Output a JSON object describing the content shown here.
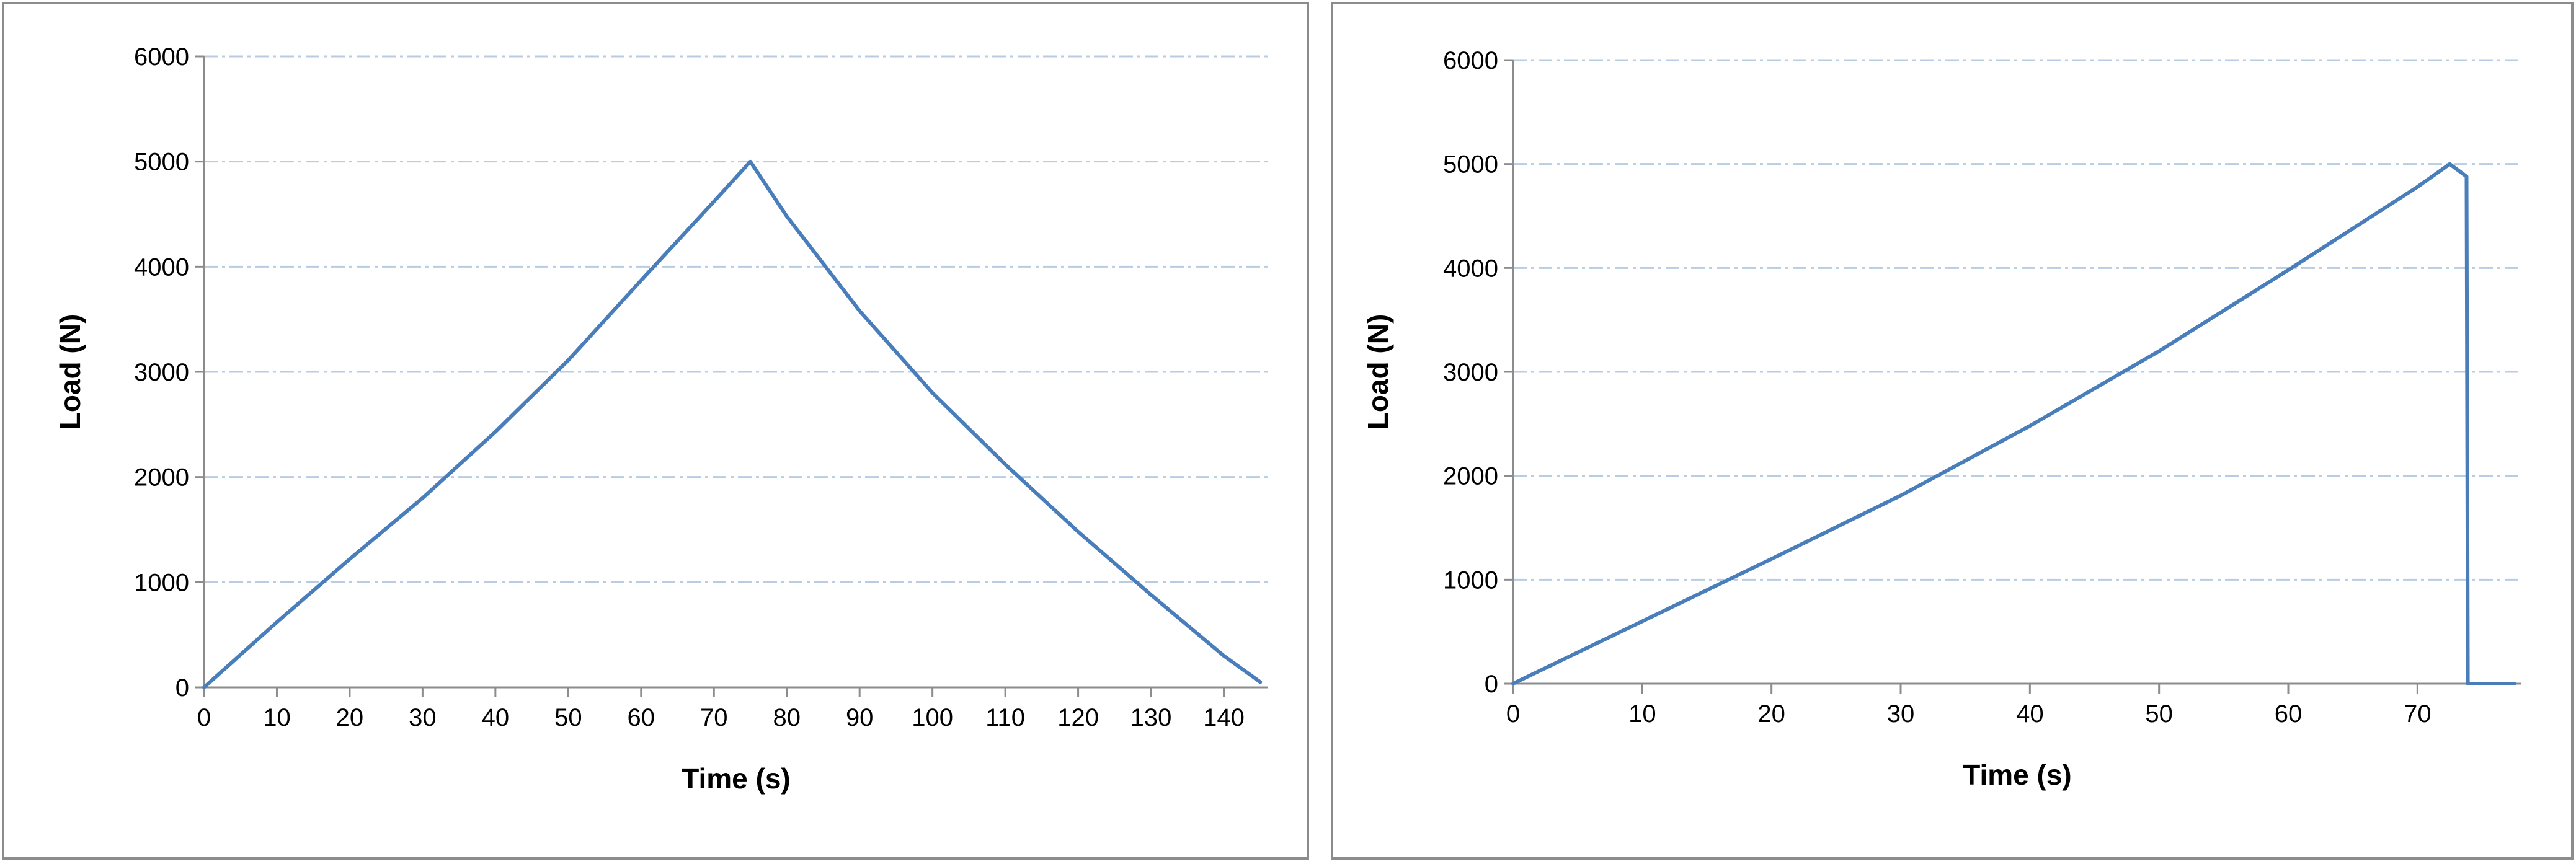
{
  "chart_data": [
    {
      "type": "line",
      "xlabel": "Time (s)",
      "ylabel": "Load (N)",
      "xlim": [
        0,
        146
      ],
      "ylim": [
        0,
        6000
      ],
      "xticks": [
        0,
        10,
        20,
        30,
        40,
        50,
        60,
        70,
        80,
        90,
        100,
        110,
        120,
        130,
        140
      ],
      "yticks": [
        0,
        1000,
        2000,
        3000,
        4000,
        5000,
        6000
      ],
      "grid": "horizontal dash-dot",
      "legend": "none",
      "color": "#4a7ebb",
      "grid_color": "#b8cce4",
      "series": [
        {
          "x": [
            0,
            10,
            20,
            30,
            40,
            50,
            60,
            70,
            75,
            80,
            90,
            100,
            110,
            120,
            130,
            140,
            145
          ],
          "y": [
            0,
            620,
            1220,
            1800,
            2430,
            3110,
            3870,
            4620,
            5000,
            4480,
            3580,
            2800,
            2120,
            1480,
            880,
            300,
            50
          ]
        }
      ]
    },
    {
      "type": "line",
      "xlabel": "Time (s)",
      "ylabel": "Load (N)",
      "xlim": [
        0,
        78
      ],
      "ylim": [
        0,
        6000
      ],
      "xticks": [
        0,
        10,
        20,
        30,
        40,
        50,
        60,
        70
      ],
      "yticks": [
        0,
        1000,
        2000,
        3000,
        4000,
        5000,
        6000
      ],
      "grid": "horizontal dash-dot",
      "legend": "none",
      "color": "#4a7ebb",
      "grid_color": "#b8cce4",
      "series": [
        {
          "x": [
            0,
            10,
            20,
            30,
            40,
            50,
            60,
            70,
            72.5,
            73.8,
            73.9,
            74.2,
            77.5
          ],
          "y": [
            0,
            600,
            1200,
            1810,
            2480,
            3200,
            3980,
            4780,
            5000,
            4880,
            0,
            0,
            0
          ]
        }
      ]
    }
  ]
}
